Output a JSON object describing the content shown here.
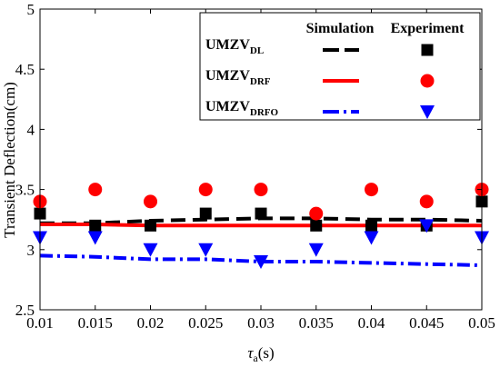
{
  "chart_data": {
    "type": "line",
    "xlabel": {
      "main": "τ",
      "sub": "a",
      "suffix": "(s)"
    },
    "ylabel": "Transient Deflection(cm)",
    "xlim": [
      0.01,
      0.05
    ],
    "ylim": [
      2.5,
      5
    ],
    "xticks": [
      "0.01",
      "0.015",
      "0.02",
      "0.025",
      "0.03",
      "0.035",
      "0.04",
      "0.045",
      "0.05"
    ],
    "yticks": [
      "2.5",
      "3",
      "3.5",
      "4",
      "4.5",
      "5"
    ],
    "legend": {
      "placement": "top-right",
      "header_simulation": "Simulation",
      "header_experiment": "Experiment"
    },
    "series": [
      {
        "name": "UMZV",
        "name_sub": "DL",
        "kind": "simulation",
        "style": "dashed",
        "color": "#000000",
        "x": [
          0.01,
          0.015,
          0.02,
          0.025,
          0.03,
          0.035,
          0.04,
          0.045,
          0.05
        ],
        "y": [
          3.22,
          3.22,
          3.24,
          3.25,
          3.26,
          3.26,
          3.25,
          3.25,
          3.24
        ]
      },
      {
        "name": "UMZV",
        "name_sub": "DL",
        "kind": "experiment",
        "marker": "square",
        "color": "#000000",
        "x": [
          0.01,
          0.015,
          0.02,
          0.025,
          0.03,
          0.035,
          0.04,
          0.045,
          0.05
        ],
        "y": [
          3.3,
          3.2,
          3.2,
          3.3,
          3.3,
          3.2,
          3.2,
          3.2,
          3.4
        ]
      },
      {
        "name": "UMZV",
        "name_sub": "DRF",
        "kind": "simulation",
        "style": "solid",
        "color": "#ff0000",
        "x": [
          0.01,
          0.015,
          0.02,
          0.025,
          0.03,
          0.035,
          0.04,
          0.045,
          0.05
        ],
        "y": [
          3.21,
          3.21,
          3.2,
          3.2,
          3.2,
          3.2,
          3.2,
          3.2,
          3.2
        ]
      },
      {
        "name": "UMZV",
        "name_sub": "DRF",
        "kind": "experiment",
        "marker": "circle",
        "color": "#ff0000",
        "x": [
          0.01,
          0.015,
          0.02,
          0.025,
          0.03,
          0.035,
          0.04,
          0.045,
          0.05
        ],
        "y": [
          3.4,
          3.5,
          3.4,
          3.5,
          3.5,
          3.3,
          3.5,
          3.4,
          3.5
        ]
      },
      {
        "name": "UMZV",
        "name_sub": "DRFO",
        "kind": "simulation",
        "style": "dashdot",
        "color": "#0000ff",
        "x": [
          0.01,
          0.015,
          0.02,
          0.025,
          0.03,
          0.035,
          0.04,
          0.045,
          0.05
        ],
        "y": [
          2.95,
          2.94,
          2.92,
          2.92,
          2.9,
          2.9,
          2.89,
          2.88,
          2.87
        ]
      },
      {
        "name": "UMZV",
        "name_sub": "DRFO",
        "kind": "experiment",
        "marker": "triangle-down",
        "color": "#0000ff",
        "x": [
          0.01,
          0.015,
          0.02,
          0.025,
          0.03,
          0.035,
          0.04,
          0.045,
          0.05
        ],
        "y": [
          3.1,
          3.1,
          3.0,
          3.0,
          2.9,
          3.0,
          3.1,
          3.2,
          3.1
        ]
      }
    ]
  }
}
